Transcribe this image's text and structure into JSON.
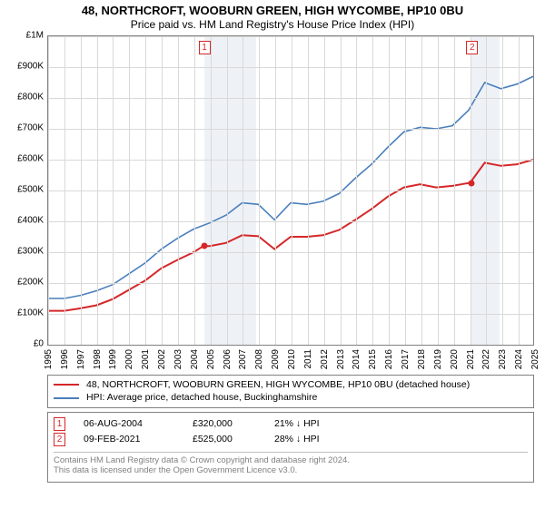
{
  "title": "48, NORTHCROFT, WOOBURN GREEN, HIGH WYCOMBE, HP10 0BU",
  "subtitle": "Price paid vs. HM Land Registry's House Price Index (HPI)",
  "chart": {
    "type": "line",
    "background_color": "#ffffff",
    "grid_color": "#d9d9d9",
    "border_color": "#808080",
    "shade_color": "#eef2f7",
    "x": {
      "min": 1995,
      "max": 2025,
      "ticks": [
        1995,
        1996,
        1997,
        1998,
        1999,
        2000,
        2001,
        2002,
        2003,
        2004,
        2005,
        2006,
        2007,
        2008,
        2009,
        2010,
        2011,
        2012,
        2013,
        2014,
        2015,
        2016,
        2017,
        2018,
        2019,
        2020,
        2021,
        2022,
        2023,
        2024,
        2025
      ]
    },
    "y": {
      "min": 0,
      "max": 1000000,
      "ticks": [
        {
          "v": 0,
          "label": "£0"
        },
        {
          "v": 100000,
          "label": "£100K"
        },
        {
          "v": 200000,
          "label": "£200K"
        },
        {
          "v": 300000,
          "label": "£300K"
        },
        {
          "v": 400000,
          "label": "£400K"
        },
        {
          "v": 500000,
          "label": "£500K"
        },
        {
          "v": 600000,
          "label": "£600K"
        },
        {
          "v": 700000,
          "label": "£700K"
        },
        {
          "v": 800000,
          "label": "£800K"
        },
        {
          "v": 900000,
          "label": "£900K"
        },
        {
          "v": 1000000,
          "label": "£1M"
        }
      ]
    },
    "shaded_ranges": [
      {
        "from": 2004.6,
        "to": 2007.8
      },
      {
        "from": 2021.1,
        "to": 2022.8
      }
    ],
    "series": [
      {
        "id": "property",
        "color": "#d62728",
        "width": 2,
        "data": [
          [
            1995,
            110000
          ],
          [
            1996,
            110000
          ],
          [
            1997,
            118000
          ],
          [
            1998,
            128000
          ],
          [
            1999,
            148000
          ],
          [
            2000,
            178000
          ],
          [
            2001,
            208000
          ],
          [
            2002,
            248000
          ],
          [
            2003,
            275000
          ],
          [
            2004,
            300000
          ],
          [
            2004.6,
            320000
          ],
          [
            2005,
            320000
          ],
          [
            2006,
            330000
          ],
          [
            2007,
            355000
          ],
          [
            2008,
            352000
          ],
          [
            2009,
            310000
          ],
          [
            2010,
            350000
          ],
          [
            2011,
            350000
          ],
          [
            2012,
            355000
          ],
          [
            2013,
            372000
          ],
          [
            2014,
            405000
          ],
          [
            2015,
            440000
          ],
          [
            2016,
            480000
          ],
          [
            2017,
            510000
          ],
          [
            2018,
            520000
          ],
          [
            2019,
            510000
          ],
          [
            2020,
            515000
          ],
          [
            2021.1,
            525000
          ],
          [
            2022,
            590000
          ],
          [
            2023,
            580000
          ],
          [
            2024,
            585000
          ],
          [
            2025,
            600000
          ]
        ]
      },
      {
        "id": "hpi",
        "color": "#4a7ebb",
        "width": 1.6,
        "data": [
          [
            1995,
            150000
          ],
          [
            1996,
            150000
          ],
          [
            1997,
            160000
          ],
          [
            1998,
            175000
          ],
          [
            1999,
            195000
          ],
          [
            2000,
            230000
          ],
          [
            2001,
            265000
          ],
          [
            2002,
            310000
          ],
          [
            2003,
            345000
          ],
          [
            2004,
            375000
          ],
          [
            2005,
            395000
          ],
          [
            2006,
            420000
          ],
          [
            2007,
            460000
          ],
          [
            2008,
            455000
          ],
          [
            2009,
            405000
          ],
          [
            2010,
            460000
          ],
          [
            2011,
            455000
          ],
          [
            2012,
            465000
          ],
          [
            2013,
            490000
          ],
          [
            2014,
            540000
          ],
          [
            2015,
            585000
          ],
          [
            2016,
            640000
          ],
          [
            2017,
            690000
          ],
          [
            2018,
            705000
          ],
          [
            2019,
            700000
          ],
          [
            2020,
            710000
          ],
          [
            2021,
            760000
          ],
          [
            2022,
            850000
          ],
          [
            2023,
            830000
          ],
          [
            2024,
            845000
          ],
          [
            2025,
            870000
          ]
        ]
      }
    ],
    "markers": [
      {
        "n": "1",
        "x": 2004.6,
        "y_top": true,
        "color": "#d62728",
        "dot_y": 320000
      },
      {
        "n": "2",
        "x": 2021.1,
        "y_top": true,
        "color": "#d62728",
        "dot_y": 525000
      }
    ]
  },
  "legend": {
    "items": [
      {
        "color": "#d62728",
        "label": "48, NORTHCROFT, WOOBURN GREEN, HIGH WYCOMBE, HP10 0BU (detached house)"
      },
      {
        "color": "#4a7ebb",
        "label": "HPI: Average price, detached house, Buckinghamshire"
      }
    ]
  },
  "sales": {
    "rows": [
      {
        "n": "1",
        "color": "#d62728",
        "date": "06-AUG-2004",
        "price": "£320,000",
        "pct": "21% ↓ HPI"
      },
      {
        "n": "2",
        "color": "#d62728",
        "date": "09-FEB-2021",
        "price": "£525,000",
        "pct": "28% ↓ HPI"
      }
    ],
    "footer_l1": "Contains HM Land Registry data © Crown copyright and database right 2024.",
    "footer_l2": "This data is licensed under the Open Government Licence v3.0."
  }
}
